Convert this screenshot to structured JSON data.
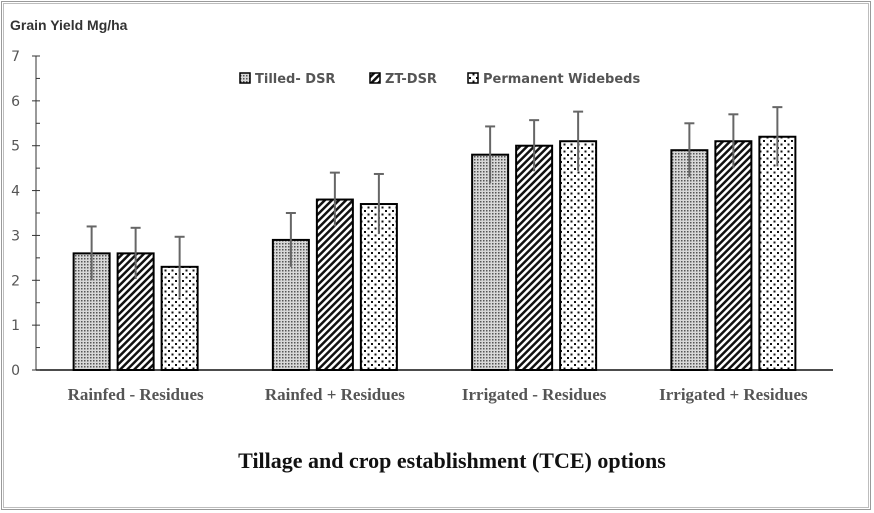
{
  "chart_data": {
    "type": "bar",
    "ylabel": "Grain Yield Mg/ha",
    "xlabel": "Tillage and crop  establishment  (TCE) options",
    "categories": [
      "Rainfed - Residues",
      "Rainfed + Residues",
      "Irrigated - Residues",
      "Irrigated + Residues"
    ],
    "ylim": [
      0,
      7
    ],
    "yticks": [
      0,
      1,
      2,
      3,
      4,
      5,
      6,
      7
    ],
    "legend_position": "top-center",
    "grid": false,
    "series": [
      {
        "name": "Tilled- DSR",
        "pattern": "fine-grid",
        "values": [
          2.6,
          2.9,
          4.8,
          4.9
        ],
        "errors": [
          0.6,
          0.6,
          0.63,
          0.6
        ]
      },
      {
        "name": "ZT-DSR",
        "pattern": "diagonal-hatch",
        "values": [
          2.6,
          3.8,
          5.0,
          5.1
        ],
        "errors": [
          0.57,
          0.6,
          0.57,
          0.6
        ]
      },
      {
        "name": "Permanent Widebeds",
        "pattern": "dots",
        "values": [
          2.3,
          3.7,
          5.1,
          5.2
        ],
        "errors": [
          0.67,
          0.67,
          0.66,
          0.66
        ]
      }
    ]
  }
}
